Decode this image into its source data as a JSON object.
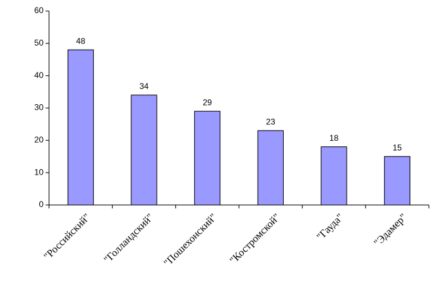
{
  "chart_data": {
    "type": "bar",
    "categories": [
      "\"Российский\"",
      "\"Голландский\"",
      "\"Пошехонский\"",
      "\"Костромской\"",
      "\"Гауда\"",
      "\"Эдамер\""
    ],
    "values": [
      48,
      34,
      29,
      23,
      18,
      15
    ],
    "color": "#9999ff",
    "ylim": [
      0,
      60
    ],
    "yticks": [
      0,
      10,
      20,
      30,
      40,
      50,
      60
    ],
    "grid": false
  }
}
